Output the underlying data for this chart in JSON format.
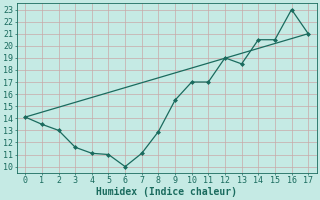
{
  "xlabel": "Humidex (Indice chaleur)",
  "background_color": "#c5eae4",
  "grid_color": "#c8a8a8",
  "line_color": "#1a6b5e",
  "xlim": [
    -0.5,
    17.5
  ],
  "ylim": [
    9.5,
    23.5
  ],
  "xticks": [
    0,
    1,
    2,
    3,
    4,
    5,
    6,
    7,
    8,
    9,
    10,
    11,
    12,
    13,
    14,
    15,
    16,
    17
  ],
  "yticks": [
    10,
    11,
    12,
    13,
    14,
    15,
    16,
    17,
    18,
    19,
    20,
    21,
    22,
    23
  ],
  "series1_x": [
    0,
    1,
    2,
    3,
    4,
    5,
    6,
    7,
    8,
    9,
    10,
    11,
    12,
    13,
    14,
    15,
    16,
    17
  ],
  "series1_y": [
    14.1,
    13.5,
    13.0,
    11.6,
    11.1,
    11.0,
    10.0,
    11.1,
    12.9,
    15.5,
    17.0,
    17.0,
    19.0,
    18.5,
    20.5,
    20.5,
    23.0,
    21.0
  ],
  "series2_x": [
    0,
    17
  ],
  "series2_y": [
    14.1,
    21.0
  ],
  "font_size": 7,
  "tick_font_size": 6,
  "xlabel_fontsize": 7
}
